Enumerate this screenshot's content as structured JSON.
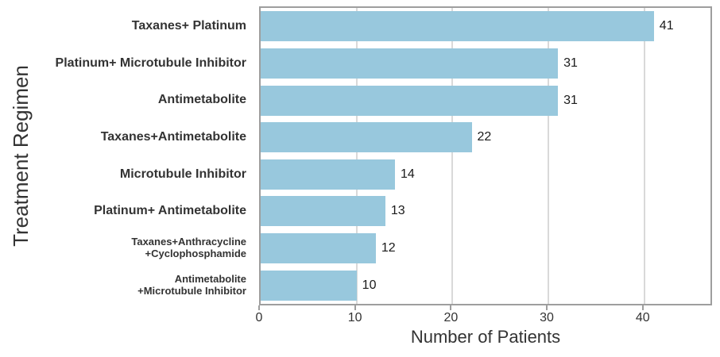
{
  "chart_data": {
    "type": "bar",
    "orientation": "horizontal",
    "title": "",
    "xlabel": "Number of Patients",
    "ylabel": "Treatment Regimen",
    "xlim": [
      0,
      46.9
    ],
    "xticks": [
      0,
      10,
      20,
      30,
      40
    ],
    "grid": "vertical-only",
    "legend": "none",
    "bar_color": "#98c8dd",
    "grid_color": "#d9d9d9",
    "border_color": "#9e9e9e",
    "text_color": "#333333",
    "bars": [
      {
        "label_lines": [
          "Taxanes+ Platinum"
        ],
        "value": 41,
        "small": false
      },
      {
        "label_lines": [
          "Platinum+ Microtubule Inhibitor"
        ],
        "value": 31,
        "small": false
      },
      {
        "label_lines": [
          "Antimetabolite"
        ],
        "value": 31,
        "small": false
      },
      {
        "label_lines": [
          "Taxanes+Antimetabolite"
        ],
        "value": 22,
        "small": false
      },
      {
        "label_lines": [
          "Microtubule Inhibitor"
        ],
        "value": 14,
        "small": false
      },
      {
        "label_lines": [
          "Platinum+ Antimetabolite"
        ],
        "value": 13,
        "small": false
      },
      {
        "label_lines": [
          "Taxanes+Anthracycline",
          "+Cyclophosphamide"
        ],
        "value": 12,
        "small": true
      },
      {
        "label_lines": [
          "Antimetabolite",
          "+Microtubule Inhibitor"
        ],
        "value": 10,
        "small": true
      }
    ]
  }
}
